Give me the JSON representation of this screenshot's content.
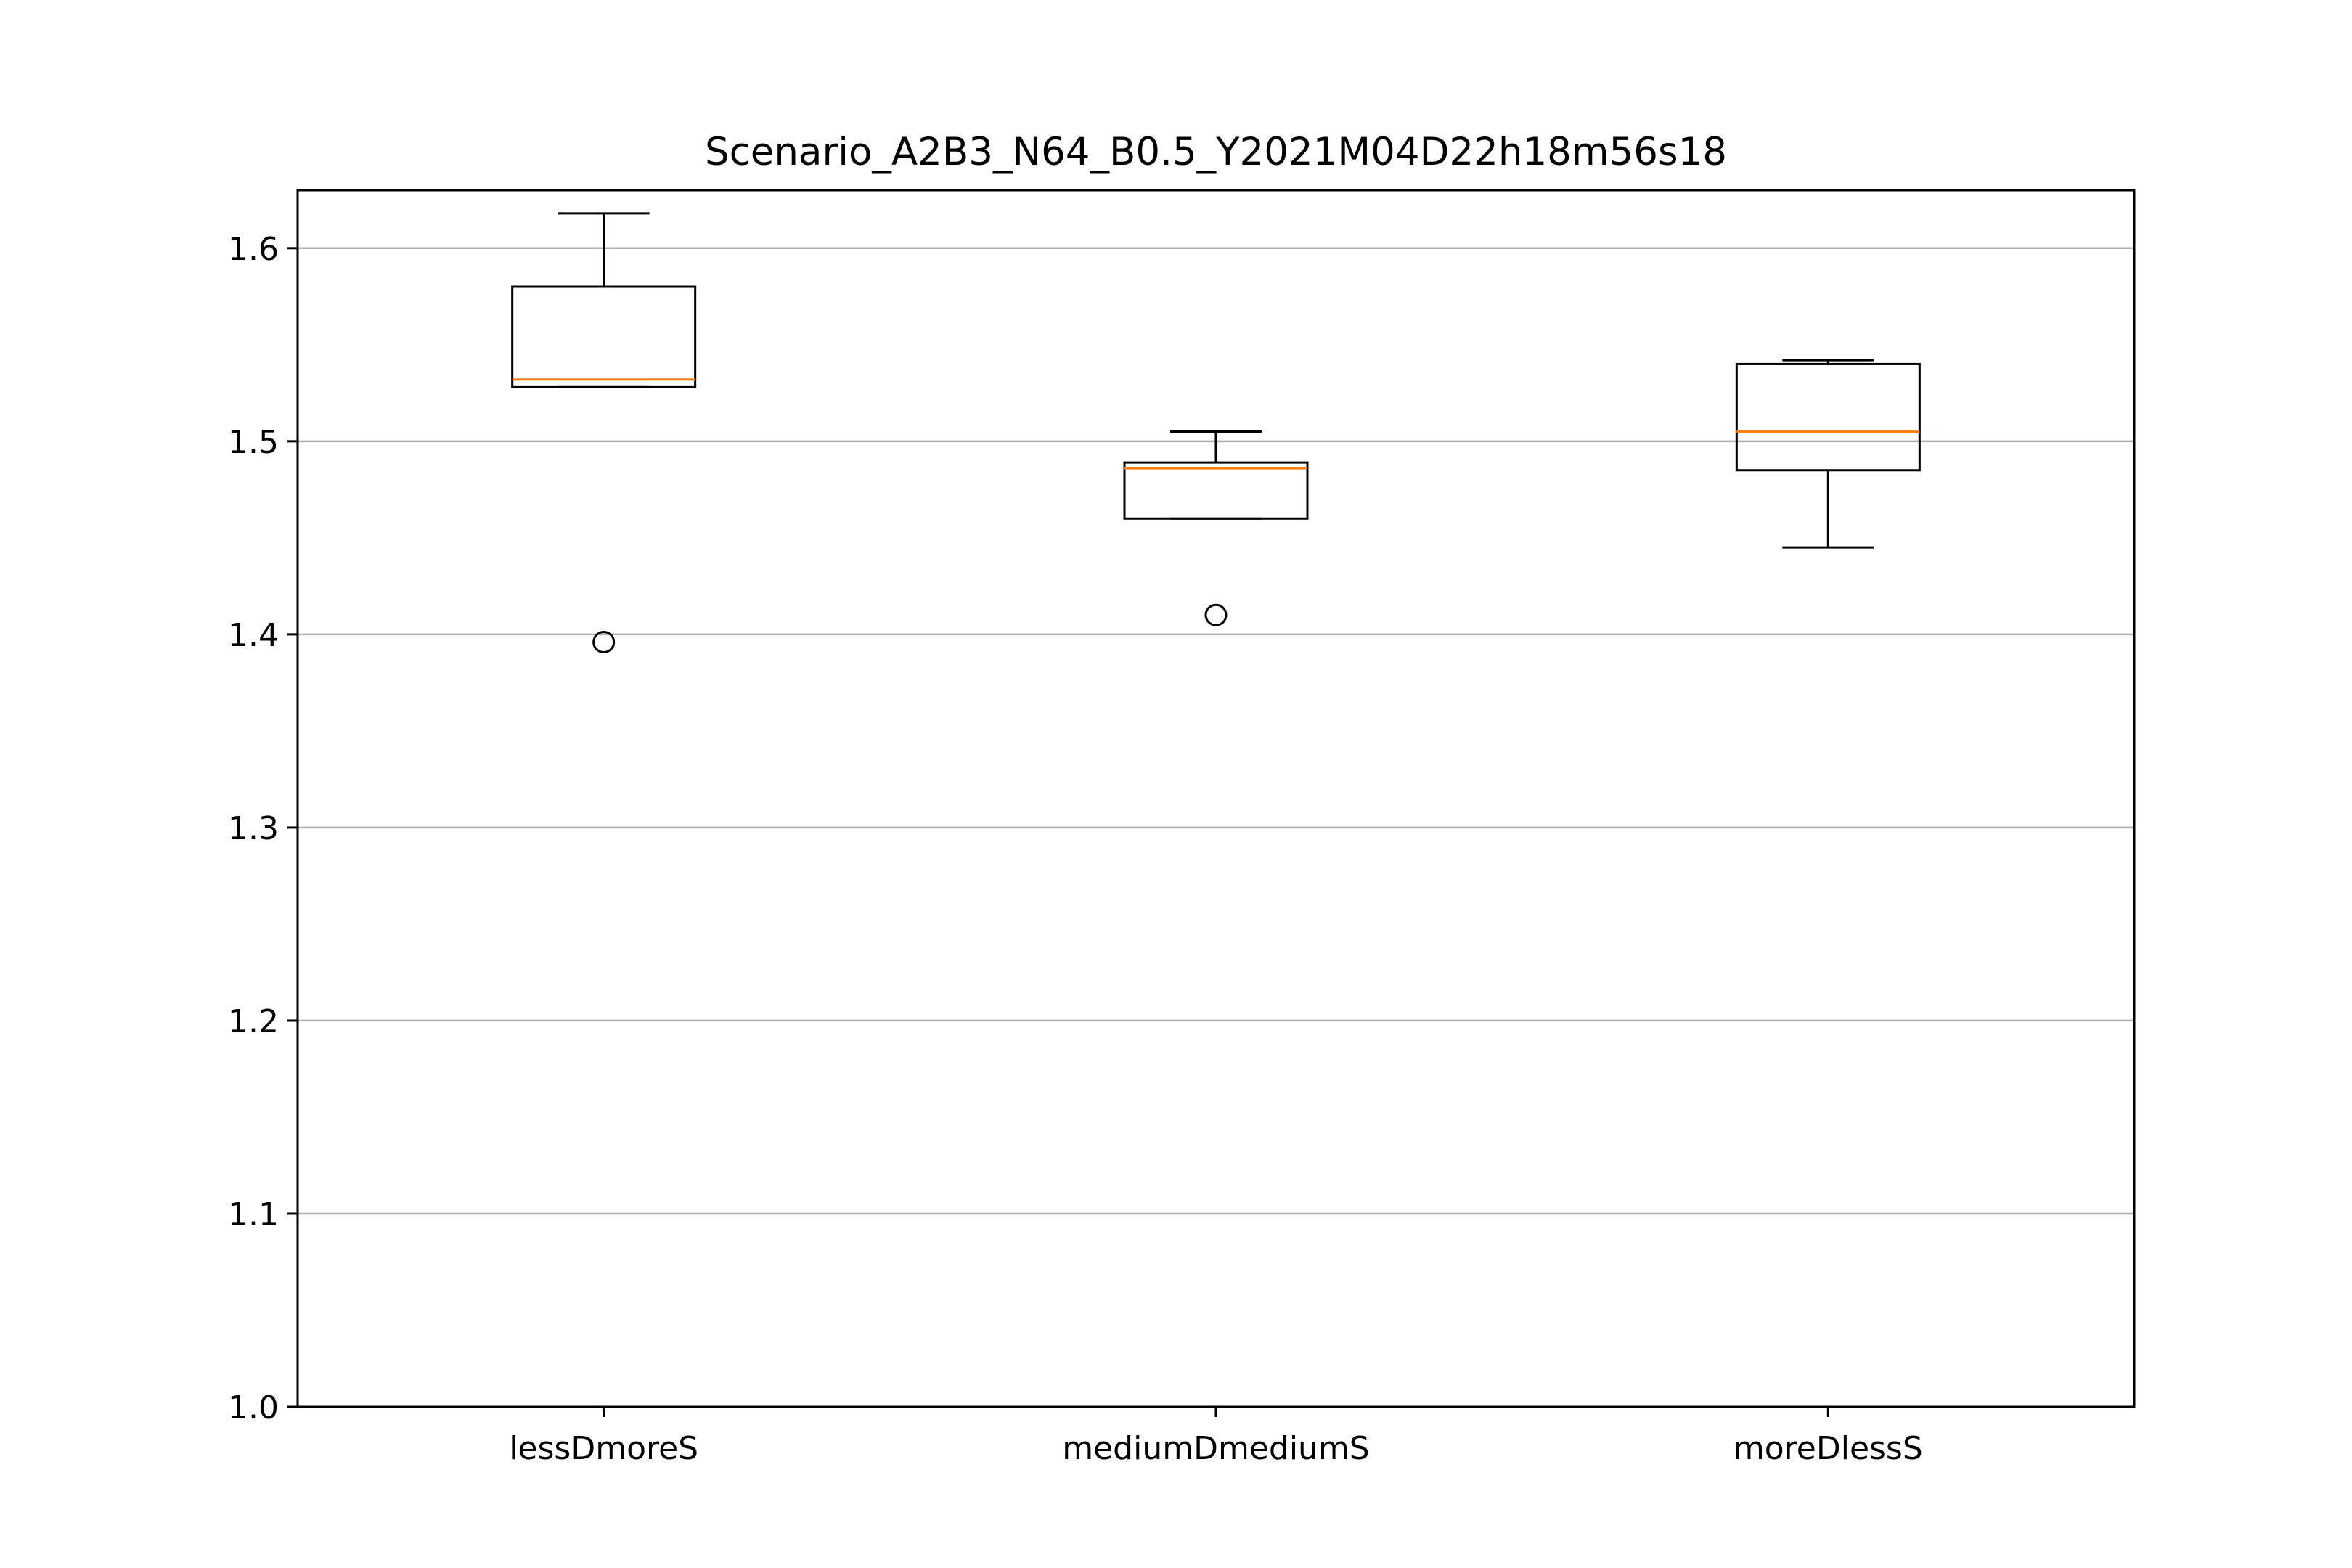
{
  "chart_data": {
    "type": "box",
    "title": "Scenario_A2B3_N64_B0.5_Y2021M04D22h18m56s18",
    "xlabel": "",
    "ylabel": "",
    "ylim": [
      1.0,
      1.63
    ],
    "yticks": [
      1.0,
      1.1,
      1.2,
      1.3,
      1.4,
      1.5,
      1.6
    ],
    "ytick_labels": [
      "1.0",
      "1.1",
      "1.2",
      "1.3",
      "1.4",
      "1.5",
      "1.6"
    ],
    "grid": "horizontal",
    "categories": [
      "lessDmoreS",
      "mediumDmediumS",
      "moreDlessS"
    ],
    "boxes": [
      {
        "label": "lessDmoreS",
        "whisker_low": 1.528,
        "q1": 1.528,
        "median": 1.532,
        "q3": 1.58,
        "whisker_high": 1.618,
        "outliers": [
          1.396
        ]
      },
      {
        "label": "mediumDmediumS",
        "whisker_low": 1.46,
        "q1": 1.46,
        "median": 1.486,
        "q3": 1.489,
        "whisker_high": 1.505,
        "outliers": [
          1.41
        ]
      },
      {
        "label": "moreDlessS",
        "whisker_low": 1.445,
        "q1": 1.485,
        "median": 1.505,
        "q3": 1.54,
        "whisker_high": 1.542,
        "outliers": []
      }
    ],
    "colors": {
      "box": "#000000",
      "median": "#ff7f0e",
      "grid": "#b0b0b0"
    }
  }
}
